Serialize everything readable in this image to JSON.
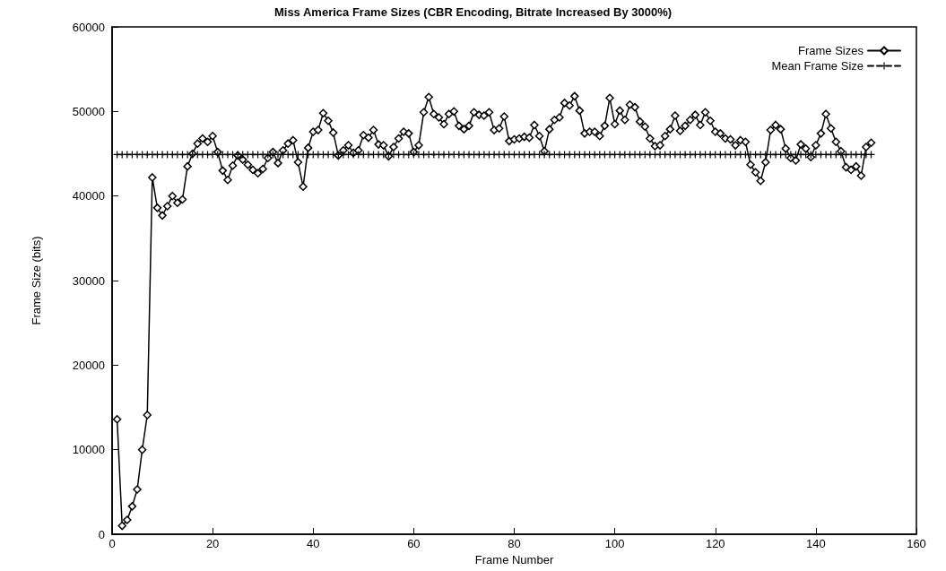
{
  "chart_data": {
    "type": "line",
    "title": "Miss America Frame Sizes (CBR Encoding, Bitrate Increased By 3000%)",
    "xlabel": "Frame Number",
    "ylabel": "Frame Size (bits)",
    "x": [
      1,
      2,
      3,
      4,
      5,
      6,
      7,
      8,
      9,
      10,
      11,
      12,
      13,
      14,
      15,
      16,
      17,
      18,
      19,
      20,
      21,
      22,
      23,
      24,
      25,
      26,
      27,
      28,
      29,
      30,
      31,
      32,
      33,
      34,
      35,
      36,
      37,
      38,
      39,
      40,
      41,
      42,
      43,
      44,
      45,
      46,
      47,
      48,
      49,
      50,
      51,
      52,
      53,
      54,
      55,
      56,
      57,
      58,
      59,
      60,
      61,
      62,
      63,
      64,
      65,
      66,
      67,
      68,
      69,
      70,
      71,
      72,
      73,
      74,
      75,
      76,
      77,
      78,
      79,
      80,
      81,
      82,
      83,
      84,
      85,
      86,
      87,
      88,
      89,
      90,
      91,
      92,
      93,
      94,
      95,
      96,
      97,
      98,
      99,
      100,
      101,
      102,
      103,
      104,
      105,
      106,
      107,
      108,
      109,
      110,
      111,
      112,
      113,
      114,
      115,
      116,
      117,
      118,
      119,
      120,
      121,
      122,
      123,
      124,
      125,
      126,
      127,
      128,
      129,
      130,
      131,
      132,
      133,
      134,
      135,
      136,
      137,
      138,
      139,
      140,
      141,
      142,
      143,
      144,
      145,
      146,
      147,
      148,
      149,
      150,
      151
    ],
    "series": [
      {
        "name": "Frame Sizes",
        "color": "#000000",
        "marker": "diamond",
        "line_style": "solid",
        "values": [
          13600,
          1000,
          1700,
          3300,
          5300,
          10000,
          14100,
          42200,
          38600,
          37700,
          38800,
          40000,
          39200,
          39600,
          43500,
          45000,
          46200,
          46800,
          46400,
          47100,
          45200,
          43000,
          41900,
          43600,
          44800,
          44300,
          43700,
          43100,
          42700,
          43200,
          44500,
          45200,
          43900,
          45400,
          46200,
          46600,
          44000,
          41100,
          45700,
          47600,
          47800,
          49800,
          48900,
          47500,
          44800,
          45400,
          46000,
          45100,
          45400,
          47200,
          46900,
          47800,
          46100,
          46000,
          44700,
          45800,
          46800,
          47600,
          47400,
          45200,
          46000,
          49900,
          51700,
          49700,
          49300,
          48500,
          49700,
          50000,
          48300,
          47900,
          48300,
          49900,
          49600,
          49500,
          49900,
          47800,
          48000,
          49400,
          46500,
          46700,
          46800,
          47000,
          46900,
          48400,
          47100,
          45300,
          47900,
          49000,
          49300,
          51000,
          50700,
          51800,
          50100,
          47400,
          47600,
          47600,
          47100,
          48300,
          51600,
          48500,
          50100,
          49000,
          50800,
          50500,
          48800,
          48200,
          46800,
          45900,
          46000,
          47100,
          47900,
          49500,
          47700,
          48300,
          49000,
          49600,
          48400,
          49900,
          48900,
          47600,
          47400,
          46800,
          46700,
          46000,
          46600,
          46400,
          43700,
          42800,
          41800,
          44000,
          47800,
          48400,
          47900,
          45600,
          44500,
          44200,
          46100,
          45600,
          44600,
          46000,
          47400,
          49700,
          48000,
          46400,
          45300,
          43400,
          43100,
          43500,
          42400,
          45800,
          46300
        ]
      },
      {
        "name": "Mean Frame Size",
        "color": "#000000",
        "marker": "cross",
        "line_style": "dashed",
        "values": [
          44900,
          44900,
          44900,
          44900,
          44900,
          44900,
          44900,
          44900,
          44900,
          44900,
          44900,
          44900,
          44900,
          44900,
          44900,
          44900,
          44900,
          44900,
          44900,
          44900,
          44900,
          44900,
          44900,
          44900,
          44900,
          44900,
          44900,
          44900,
          44900,
          44900,
          44900,
          44900,
          44900,
          44900,
          44900,
          44900,
          44900,
          44900,
          44900,
          44900,
          44900,
          44900,
          44900,
          44900,
          44900,
          44900,
          44900,
          44900,
          44900,
          44900,
          44900,
          44900,
          44900,
          44900,
          44900,
          44900,
          44900,
          44900,
          44900,
          44900,
          44900,
          44900,
          44900,
          44900,
          44900,
          44900,
          44900,
          44900,
          44900,
          44900,
          44900,
          44900,
          44900,
          44900,
          44900,
          44900,
          44900,
          44900,
          44900,
          44900,
          44900,
          44900,
          44900,
          44900,
          44900,
          44900,
          44900,
          44900,
          44900,
          44900,
          44900,
          44900,
          44900,
          44900,
          44900,
          44900,
          44900,
          44900,
          44900,
          44900,
          44900,
          44900,
          44900,
          44900,
          44900,
          44900,
          44900,
          44900,
          44900,
          44900,
          44900,
          44900,
          44900,
          44900,
          44900,
          44900,
          44900,
          44900,
          44900,
          44900,
          44900,
          44900,
          44900,
          44900,
          44900,
          44900,
          44900,
          44900,
          44900,
          44900,
          44900,
          44900,
          44900,
          44900,
          44900,
          44900,
          44900,
          44900,
          44900,
          44900,
          44900,
          44900,
          44900,
          44900,
          44900,
          44900,
          44900,
          44900,
          44900,
          44900,
          44900
        ]
      }
    ],
    "xlim": [
      0,
      160
    ],
    "xticks": [
      0,
      20,
      40,
      60,
      80,
      100,
      120,
      140,
      160
    ],
    "ylim": [
      0,
      60000
    ],
    "yticks": [
      0,
      10000,
      20000,
      30000,
      40000,
      50000,
      60000
    ],
    "grid": false,
    "legend": "top right"
  }
}
